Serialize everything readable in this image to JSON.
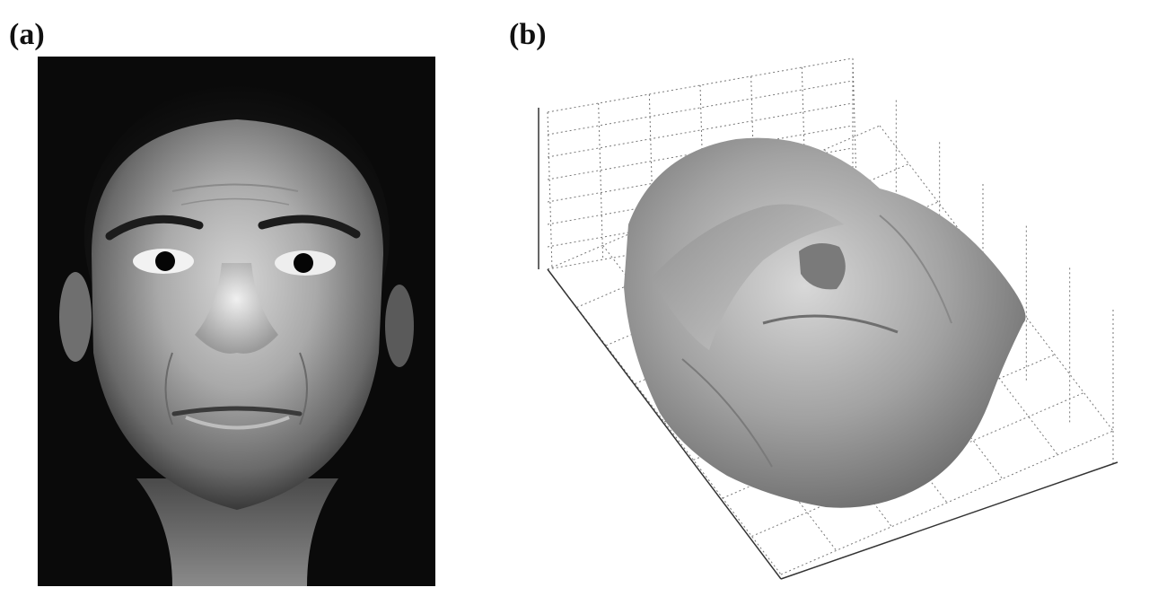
{
  "figure": {
    "panel_a": {
      "label": "(a)",
      "image_name": "frontal-face-photograph"
    },
    "panel_b": {
      "label": "(b)",
      "image_name": "3d-face-surface-plot"
    },
    "colors": {
      "photo_background": "#0a0a0a",
      "grid_line": "#777777",
      "surface_base": "#9a9a9a"
    }
  }
}
